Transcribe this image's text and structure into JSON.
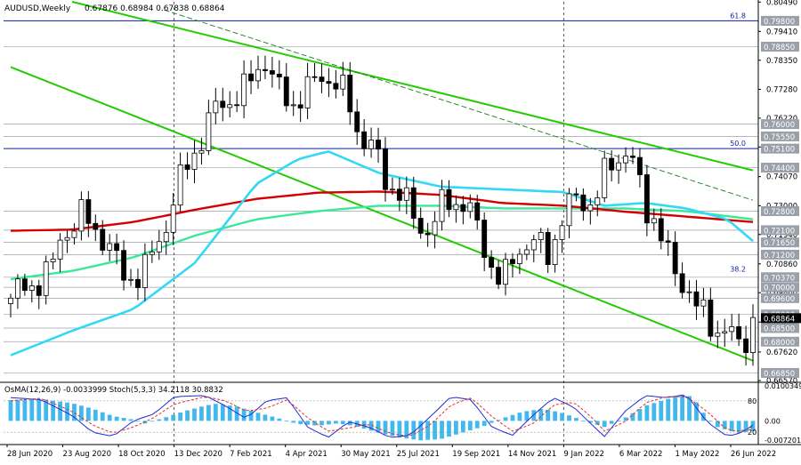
{
  "chart_data": [
    {
      "type": "candlestick",
      "symbol": "AUDUSD,Weekly",
      "ohlc_header": "0.67876 0.68984 0.67838 0.68864",
      "current_price": "0.68864",
      "y_range": [
        0.6657,
        0.805
      ],
      "price_ticks": [
        "0.80490",
        "0.79410",
        "0.78350",
        "0.77280",
        "0.76220",
        "0.75160",
        "0.74070",
        "0.73000",
        "0.71940",
        "0.70860",
        "0.69800",
        "0.68720",
        "0.67620",
        "0.66570"
      ],
      "level_labels": [
        "0.79800",
        "0.78850",
        "0.76000",
        "0.75550",
        "0.75100",
        "0.74400",
        "0.72800",
        "0.72100",
        "0.71650",
        "0.71200",
        "0.70370",
        "0.70000",
        "0.69600",
        "0.69000",
        "0.68500",
        "0.68000",
        "0.66850"
      ],
      "fib_labels": [
        {
          "text": "61.8",
          "price": 0.798
        },
        {
          "text": "50.0",
          "price": 0.751
        },
        {
          "text": "38.2",
          "price": 0.7048
        }
      ],
      "x_labels": [
        "28 Jun 2020",
        "23 Aug 2020",
        "18 Oct 2020",
        "13 Dec 2020",
        "7 Feb 2021",
        "4 Apr 2021",
        "30 May 2021",
        "25 Jul 2021",
        "19 Sep 2021",
        "14 Nov 2021",
        "9 Jan 2022",
        "6 Mar 2022",
        "1 May 2022",
        "26 Jun 2022"
      ],
      "weeks_count": 106,
      "close_path": [
        [
          0,
          0.696
        ],
        [
          8,
          0.706
        ],
        [
          10,
          0.72
        ],
        [
          14,
          0.726
        ],
        [
          18,
          0.719
        ],
        [
          22,
          0.704
        ],
        [
          26,
          0.705
        ],
        [
          30,
          0.722
        ],
        [
          34,
          0.743
        ],
        [
          38,
          0.758
        ],
        [
          41,
          0.768
        ],
        [
          44,
          0.77
        ],
        [
          46,
          0.772
        ],
        [
          48,
          0.781
        ],
        [
          50,
          0.784
        ],
        [
          52,
          0.772
        ],
        [
          55,
          0.768
        ],
        [
          58,
          0.772
        ],
        [
          61,
          0.779
        ],
        [
          63,
          0.776
        ],
        [
          66,
          0.768
        ],
        [
          68,
          0.757
        ],
        [
          71,
          0.75
        ],
        [
          73,
          0.74
        ],
        [
          76,
          0.735
        ],
        [
          79,
          0.724
        ],
        [
          82,
          0.721
        ],
        [
          85,
          0.732
        ],
        [
          88,
          0.732
        ],
        [
          90,
          0.726
        ],
        [
          92,
          0.718
        ],
        [
          94,
          0.708
        ],
        [
          96,
          0.7
        ],
        [
          99,
          0.715
        ],
        [
          102,
          0.716
        ],
        [
          105,
          0.713
        ],
        [
          108,
          0.726
        ],
        [
          111,
          0.734
        ],
        [
          114,
          0.73
        ],
        [
          117,
          0.746
        ],
        [
          120,
          0.75
        ],
        [
          122,
          0.743
        ],
        [
          124,
          0.73
        ],
        [
          126,
          0.725
        ],
        [
          128,
          0.712
        ],
        [
          130,
          0.705
        ],
        [
          132,
          0.701
        ],
        [
          134,
          0.692
        ],
        [
          136,
          0.688
        ],
        [
          138,
          0.685
        ],
        [
          140,
          0.684
        ],
        [
          142,
          0.678
        ],
        [
          144,
          0.683
        ],
        [
          145,
          0.6886
        ]
      ],
      "indicators": {
        "moving_average_slow_red": [
          [
            0,
            0.7208
          ],
          [
            12,
            0.7212
          ],
          [
            24,
            0.724
          ],
          [
            36,
            0.7285
          ],
          [
            48,
            0.7325
          ],
          [
            60,
            0.7348
          ],
          [
            72,
            0.7352
          ],
          [
            84,
            0.734
          ],
          [
            96,
            0.731
          ],
          [
            108,
            0.73
          ],
          [
            120,
            0.7278
          ],
          [
            132,
            0.726
          ],
          [
            145,
            0.724
          ]
        ],
        "moving_average_mid_green": [
          [
            0,
            0.703
          ],
          [
            12,
            0.706
          ],
          [
            24,
            0.711
          ],
          [
            36,
            0.719
          ],
          [
            48,
            0.725
          ],
          [
            60,
            0.728
          ],
          [
            72,
            0.73
          ],
          [
            84,
            0.73
          ],
          [
            96,
            0.729
          ],
          [
            108,
            0.729
          ],
          [
            120,
            0.729
          ],
          [
            132,
            0.728
          ],
          [
            145,
            0.725
          ]
        ],
        "moving_average_fast_cyan": [
          [
            0,
            0.675
          ],
          [
            12,
            0.684
          ],
          [
            24,
            0.692
          ],
          [
            36,
            0.709
          ],
          [
            48,
            0.738
          ],
          [
            56,
            0.747
          ],
          [
            62,
            0.75
          ],
          [
            72,
            0.742
          ],
          [
            84,
            0.737
          ],
          [
            96,
            0.736
          ],
          [
            108,
            0.735
          ],
          [
            116,
            0.73
          ],
          [
            124,
            0.731
          ],
          [
            132,
            0.729
          ],
          [
            140,
            0.725
          ],
          [
            145,
            0.717
          ]
        ]
      },
      "trend_channel": {
        "upper": [
          [
            12,
            0.805
          ],
          [
            145,
            0.743
          ]
        ],
        "lower": [
          [
            0,
            0.781
          ],
          [
            145,
            0.673
          ]
        ],
        "mid_dashed": [
          [
            30,
            0.802
          ],
          [
            145,
            0.732
          ]
        ]
      },
      "vertical_markers_dates": [
        "13 Dec 2020",
        "9 Jan 2022"
      ]
    },
    {
      "type": "histogram",
      "header": "OsMA(12,26,9) -0.0033999  Stoch(5,3,3) 34.2118 30.8832",
      "osma_ticks": [
        "0.0100349",
        "0.00",
        "-0.0072016"
      ],
      "stoch_levels": [
        "80",
        "20"
      ],
      "osma_values": [
        [
          0,
          0.0068
        ],
        [
          6,
          0.0072
        ],
        [
          12,
          0.0058
        ],
        [
          16,
          0.004
        ],
        [
          20,
          0.0016
        ],
        [
          24,
          0.0004
        ],
        [
          26,
          -0.001
        ],
        [
          30,
          0.001
        ],
        [
          34,
          0.0032
        ],
        [
          38,
          0.005
        ],
        [
          40,
          0.0056
        ],
        [
          44,
          0.0048
        ],
        [
          48,
          0.0028
        ],
        [
          52,
          0.001
        ],
        [
          56,
          -0.001
        ],
        [
          60,
          -0.0016
        ],
        [
          64,
          -0.0008
        ],
        [
          68,
          -0.002
        ],
        [
          72,
          -0.004
        ],
        [
          76,
          -0.0055
        ],
        [
          80,
          -0.0064
        ],
        [
          84,
          -0.006
        ],
        [
          88,
          -0.004
        ],
        [
          92,
          -0.002
        ],
        [
          96,
          0.0008
        ],
        [
          100,
          0.003
        ],
        [
          104,
          0.004
        ],
        [
          108,
          0.0025
        ],
        [
          112,
          0.0
        ],
        [
          116,
          -0.002
        ],
        [
          120,
          0.001
        ],
        [
          124,
          0.005
        ],
        [
          128,
          0.007
        ],
        [
          132,
          0.009
        ],
        [
          134,
          0.006
        ],
        [
          136,
          0.001
        ],
        [
          138,
          -0.002
        ],
        [
          140,
          -0.003
        ],
        [
          142,
          -0.004
        ],
        [
          145,
          -0.0034
        ]
      ],
      "stoch_main": [
        [
          0,
          86
        ],
        [
          6,
          82
        ],
        [
          12,
          52
        ],
        [
          16,
          20
        ],
        [
          20,
          12
        ],
        [
          24,
          42
        ],
        [
          28,
          55
        ],
        [
          32,
          88
        ],
        [
          38,
          90
        ],
        [
          42,
          70
        ],
        [
          46,
          46
        ],
        [
          50,
          80
        ],
        [
          54,
          86
        ],
        [
          58,
          30
        ],
        [
          62,
          10
        ],
        [
          66,
          40
        ],
        [
          70,
          30
        ],
        [
          74,
          10
        ],
        [
          78,
          14
        ],
        [
          82,
          50
        ],
        [
          86,
          88
        ],
        [
          90,
          82
        ],
        [
          94,
          30
        ],
        [
          98,
          14
        ],
        [
          102,
          52
        ],
        [
          106,
          86
        ],
        [
          110,
          68
        ],
        [
          114,
          30
        ],
        [
          116,
          12
        ],
        [
          120,
          60
        ],
        [
          124,
          90
        ],
        [
          128,
          86
        ],
        [
          132,
          92
        ],
        [
          136,
          40
        ],
        [
          140,
          12
        ],
        [
          143,
          20
        ],
        [
          145,
          34
        ]
      ],
      "stoch_signal": [
        [
          0,
          80
        ],
        [
          6,
          85
        ],
        [
          12,
          60
        ],
        [
          16,
          34
        ],
        [
          20,
          18
        ],
        [
          24,
          30
        ],
        [
          28,
          48
        ],
        [
          32,
          74
        ],
        [
          38,
          88
        ],
        [
          42,
          80
        ],
        [
          46,
          60
        ],
        [
          50,
          66
        ],
        [
          54,
          82
        ],
        [
          58,
          48
        ],
        [
          62,
          22
        ],
        [
          66,
          28
        ],
        [
          70,
          36
        ],
        [
          74,
          18
        ],
        [
          78,
          12
        ],
        [
          82,
          34
        ],
        [
          86,
          72
        ],
        [
          90,
          86
        ],
        [
          94,
          50
        ],
        [
          98,
          22
        ],
        [
          102,
          36
        ],
        [
          106,
          72
        ],
        [
          110,
          78
        ],
        [
          114,
          44
        ],
        [
          116,
          22
        ],
        [
          120,
          40
        ],
        [
          124,
          76
        ],
        [
          128,
          88
        ],
        [
          132,
          88
        ],
        [
          136,
          60
        ],
        [
          140,
          24
        ],
        [
          143,
          22
        ],
        [
          145,
          31
        ]
      ]
    }
  ],
  "colors": {
    "background": "#ffffff",
    "bull_candle": "#ffffff",
    "bear_candle": "#000000",
    "ma_red": "#d40000",
    "ma_green": "#3ae89a",
    "ma_cyan": "#32d8f4",
    "channel_green": "#22cc00",
    "fib_blue": "#1525a0",
    "level_gray": "#9aa0aa",
    "price_tag": "#000000",
    "osma_bar": "#42b8ec",
    "stoch_main": "#1d2dd6",
    "stoch_signal": "#e0302a"
  }
}
